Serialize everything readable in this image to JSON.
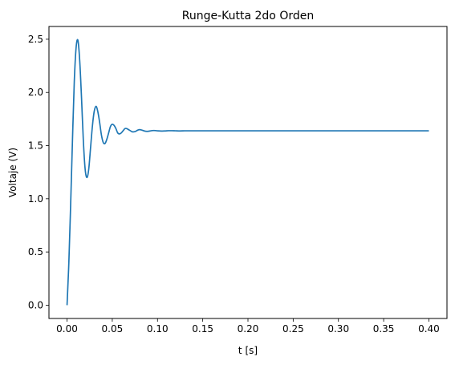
{
  "chart_data": {
    "type": "line",
    "title": "Runge-Kutta 2do Orden",
    "xlabel": "t [s]",
    "ylabel": "Voltaje (V)",
    "xlim": [
      -0.02,
      0.42
    ],
    "ylim": [
      -0.125,
      2.62
    ],
    "xticks": [
      0.0,
      0.05,
      0.1,
      0.15,
      0.2,
      0.25,
      0.3,
      0.35,
      0.4
    ],
    "xtick_labels": [
      "0.00",
      "0.05",
      "0.10",
      "0.15",
      "0.20",
      "0.25",
      "0.30",
      "0.35",
      "0.40"
    ],
    "yticks": [
      0.0,
      0.5,
      1.0,
      1.5,
      2.0,
      2.5
    ],
    "ytick_labels": [
      "0.0",
      "0.5",
      "1.0",
      "1.5",
      "2.0",
      "2.5"
    ],
    "grid": false,
    "series": [
      {
        "color": "#1f77b4",
        "x": [
          0.0,
          0.002,
          0.004,
          0.006,
          0.008,
          0.01,
          0.012,
          0.014,
          0.016,
          0.018,
          0.02,
          0.022,
          0.024,
          0.026,
          0.028,
          0.03,
          0.032,
          0.034,
          0.036,
          0.038,
          0.04,
          0.042,
          0.044,
          0.046,
          0.048,
          0.05,
          0.052,
          0.054,
          0.056,
          0.058,
          0.06,
          0.062,
          0.064,
          0.066,
          0.068,
          0.07,
          0.072,
          0.074,
          0.076,
          0.078,
          0.08,
          0.082,
          0.084,
          0.086,
          0.088,
          0.09,
          0.092,
          0.094,
          0.096,
          0.098,
          0.1,
          0.104,
          0.108,
          0.112,
          0.116,
          0.12,
          0.125,
          0.13,
          0.135,
          0.14,
          0.15,
          0.17,
          0.2,
          0.25,
          0.3,
          0.35,
          0.4
        ],
        "y": [
          0.0,
          0.4,
          0.95,
          1.55,
          2.1,
          2.42,
          2.49,
          2.3,
          1.95,
          1.55,
          1.28,
          1.2,
          1.28,
          1.48,
          1.68,
          1.82,
          1.87,
          1.82,
          1.72,
          1.6,
          1.53,
          1.52,
          1.56,
          1.62,
          1.68,
          1.7,
          1.69,
          1.66,
          1.62,
          1.61,
          1.62,
          1.64,
          1.66,
          1.66,
          1.65,
          1.64,
          1.63,
          1.63,
          1.635,
          1.645,
          1.65,
          1.648,
          1.642,
          1.636,
          1.634,
          1.635,
          1.638,
          1.641,
          1.642,
          1.641,
          1.639,
          1.637,
          1.638,
          1.64,
          1.64,
          1.639,
          1.638,
          1.639,
          1.639,
          1.639,
          1.639,
          1.639,
          1.639,
          1.639,
          1.639,
          1.639,
          1.639
        ]
      }
    ]
  }
}
